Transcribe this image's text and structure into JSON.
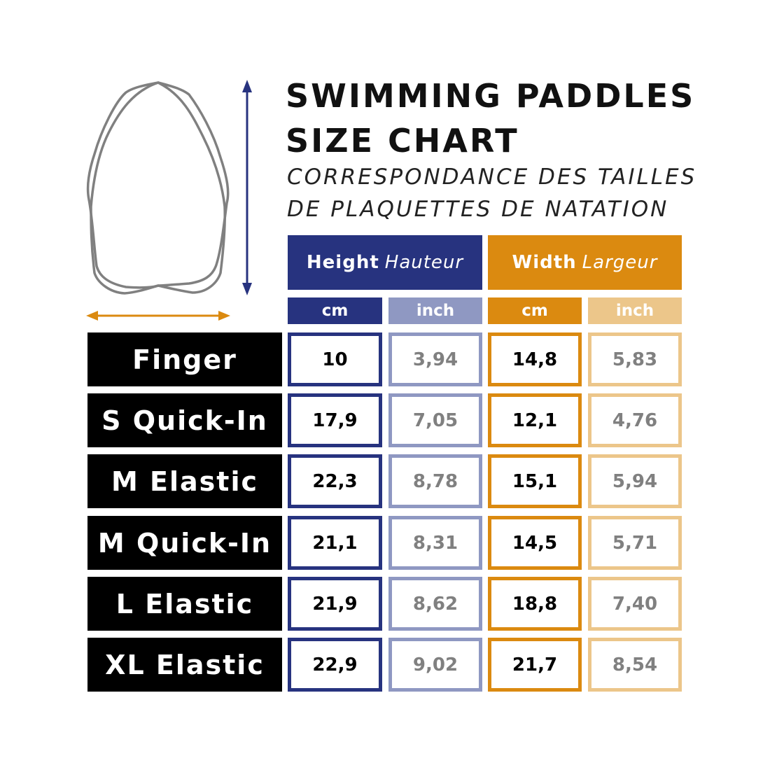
{
  "title_line1": "SWIMMING PADDLES",
  "title_line2": "SIZE CHART",
  "subtitle_line1": "CORRESPONDANCE DES TAILLES",
  "subtitle_line2": "DE PLAQUETTES DE NATATION",
  "colors": {
    "height": "#27337f",
    "height_light": "#8f98c2",
    "width": "#db8a10",
    "width_light": "#ecc68a",
    "label_bg": "#000000",
    "outline": "#808080"
  },
  "icons": [
    "paddle-outline-icon",
    "height-arrow-icon",
    "width-arrow-icon"
  ],
  "headers": {
    "height_en": "Height",
    "height_fr": "Hauteur",
    "width_en": "Width",
    "width_fr": "Largeur",
    "units": [
      "cm",
      "inch",
      "cm",
      "inch"
    ]
  },
  "chart_data": {
    "type": "table",
    "title": "SWIMMING PADDLES SIZE CHART",
    "columns": [
      "Height cm",
      "Height inch",
      "Width cm",
      "Width inch"
    ],
    "rows": [
      {
        "label": "Finger",
        "values": [
          "10",
          "3,94",
          "14,8",
          "5,83"
        ]
      },
      {
        "label": "S Quick-In",
        "values": [
          "17,9",
          "7,05",
          "12,1",
          "4,76"
        ]
      },
      {
        "label": "M Elastic",
        "values": [
          "22,3",
          "8,78",
          "15,1",
          "5,94"
        ]
      },
      {
        "label": "M Quick-In",
        "values": [
          "21,1",
          "8,31",
          "14,5",
          "5,71"
        ]
      },
      {
        "label": "L Elastic",
        "values": [
          "21,9",
          "8,62",
          "18,8",
          "7,40"
        ]
      },
      {
        "label": "XL Elastic",
        "values": [
          "22,9",
          "9,02",
          "21,7",
          "8,54"
        ]
      }
    ]
  }
}
